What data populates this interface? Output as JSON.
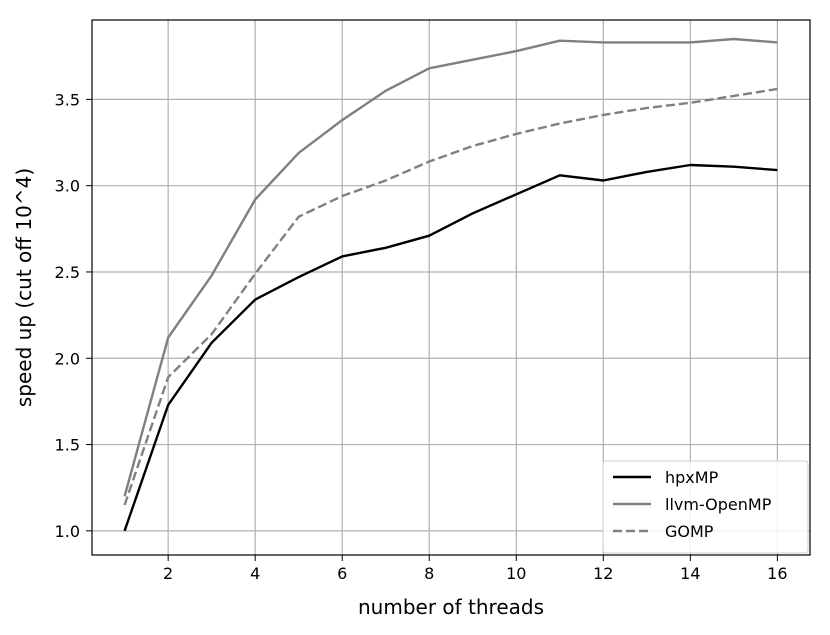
{
  "chart_data": {
    "type": "line",
    "title": "",
    "xlabel": "number of threads",
    "ylabel": "speed up (cut off 10^4)",
    "xlim": [
      0.25,
      16.75
    ],
    "ylim": [
      0.86,
      3.96
    ],
    "xticks": [
      2,
      4,
      6,
      8,
      10,
      12,
      14,
      16
    ],
    "yticks": [
      1.0,
      1.5,
      2.0,
      2.5,
      3.0,
      3.5
    ],
    "ytick_labels": [
      "1.0",
      "1.5",
      "2.0",
      "2.5",
      "3.0",
      "3.5"
    ],
    "grid": true,
    "legend_position": "bottom-right",
    "x": [
      1,
      2,
      3,
      4,
      5,
      6,
      7,
      8,
      9,
      10,
      11,
      12,
      13,
      14,
      15,
      16
    ],
    "series": [
      {
        "name": "hpxMP",
        "color": "#000000",
        "dash": "solid",
        "values": [
          1.0,
          1.73,
          2.09,
          2.34,
          2.47,
          2.59,
          2.64,
          2.71,
          2.84,
          2.95,
          3.06,
          3.03,
          3.08,
          3.12,
          3.11,
          3.09
        ]
      },
      {
        "name": "llvm-OpenMP",
        "color": "#808080",
        "dash": "solid",
        "values": [
          1.2,
          2.12,
          2.48,
          2.92,
          3.19,
          3.38,
          3.55,
          3.68,
          3.73,
          3.78,
          3.84,
          3.83,
          3.83,
          3.83,
          3.85,
          3.83
        ]
      },
      {
        "name": "GOMP",
        "color": "#808080",
        "dash": "dashed",
        "values": [
          1.15,
          1.89,
          2.14,
          2.49,
          2.82,
          2.94,
          3.03,
          3.14,
          3.23,
          3.3,
          3.36,
          3.41,
          3.45,
          3.48,
          3.52,
          3.56
        ]
      }
    ]
  }
}
